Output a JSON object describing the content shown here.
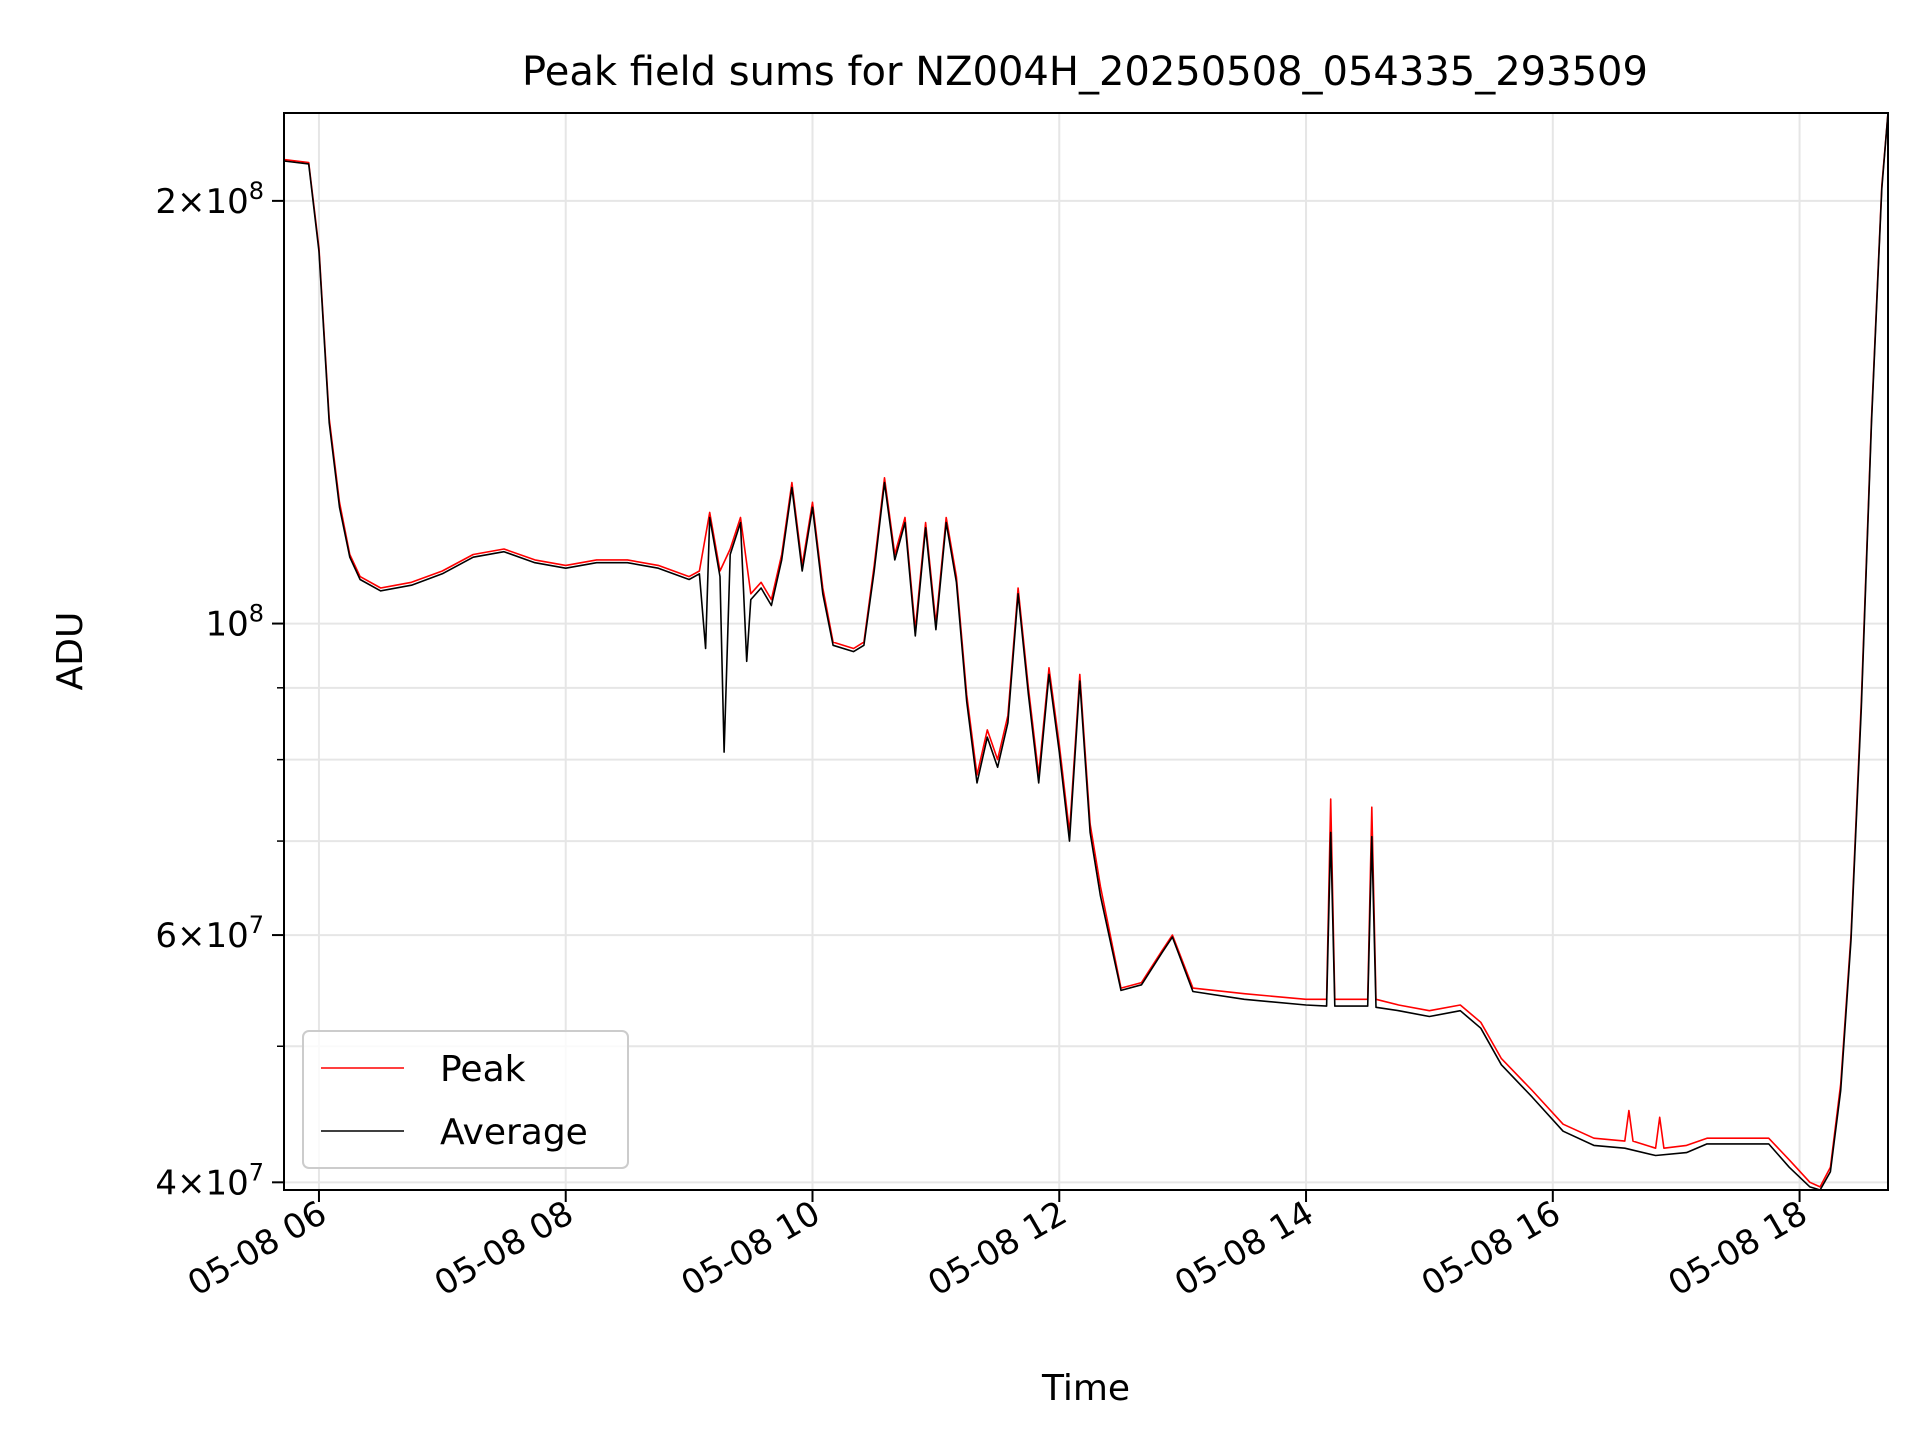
{
  "chart_data": {
    "type": "line",
    "title": "Peak field sums for NZ004H_20250508_054335_293509",
    "xlabel": "Time",
    "ylabel": "ADU",
    "yscale": "log",
    "grid": true,
    "legend_position": "lower-left",
    "xlim": [
      "2025-05-08 05:43",
      "2025-05-08 18:43"
    ],
    "ylim": [
      39500000,
      231000000
    ],
    "x_ticks": [
      {
        "value": "2025-05-08 06:00",
        "label": "05-08 06"
      },
      {
        "value": "2025-05-08 08:00",
        "label": "05-08 08"
      },
      {
        "value": "2025-05-08 10:00",
        "label": "05-08 10"
      },
      {
        "value": "2025-05-08 12:00",
        "label": "05-08 12"
      },
      {
        "value": "2025-05-08 14:00",
        "label": "05-08 14"
      },
      {
        "value": "2025-05-08 16:00",
        "label": "05-08 16"
      },
      {
        "value": "2025-05-08 18:00",
        "label": "05-08 18"
      }
    ],
    "y_ticks_major": [
      {
        "value": 40000000,
        "mantissa": "4",
        "exponent": "7"
      },
      {
        "value": 60000000,
        "mantissa": "6",
        "exponent": "7"
      },
      {
        "value": 100000000,
        "mantissa": "",
        "exponent": "8"
      },
      {
        "value": 200000000,
        "mantissa": "2",
        "exponent": "8"
      }
    ],
    "y_ticks_minor": [
      50000000,
      70000000,
      80000000,
      90000000
    ],
    "series": [
      {
        "name": "Peak",
        "color": "#ff0000",
        "points": [
          [
            "2025-05-08 05:43",
            214000000
          ],
          [
            "2025-05-08 05:55",
            213000000
          ],
          [
            "2025-05-08 06:00",
            185000000
          ],
          [
            "2025-05-08 06:05",
            140000000
          ],
          [
            "2025-05-08 06:10",
            122000000
          ],
          [
            "2025-05-08 06:15",
            112000000
          ],
          [
            "2025-05-08 06:20",
            108000000
          ],
          [
            "2025-05-08 06:30",
            106000000
          ],
          [
            "2025-05-08 06:45",
            107000000
          ],
          [
            "2025-05-08 07:00",
            109000000
          ],
          [
            "2025-05-08 07:15",
            112000000
          ],
          [
            "2025-05-08 07:30",
            113000000
          ],
          [
            "2025-05-08 07:45",
            111000000
          ],
          [
            "2025-05-08 08:00",
            110000000
          ],
          [
            "2025-05-08 08:15",
            111000000
          ],
          [
            "2025-05-08 08:30",
            111000000
          ],
          [
            "2025-05-08 08:45",
            110000000
          ],
          [
            "2025-05-08 09:00",
            108000000
          ],
          [
            "2025-05-08 09:05",
            109000000
          ],
          [
            "2025-05-08 09:10",
            120000000
          ],
          [
            "2025-05-08 09:15",
            109000000
          ],
          [
            "2025-05-08 09:20",
            113000000
          ],
          [
            "2025-05-08 09:25",
            119000000
          ],
          [
            "2025-05-08 09:30",
            105000000
          ],
          [
            "2025-05-08 09:35",
            107000000
          ],
          [
            "2025-05-08 09:40",
            104000000
          ],
          [
            "2025-05-08 09:45",
            112000000
          ],
          [
            "2025-05-08 09:50",
            126000000
          ],
          [
            "2025-05-08 09:55",
            110000000
          ],
          [
            "2025-05-08 10:00",
            122000000
          ],
          [
            "2025-05-08 10:05",
            106000000
          ],
          [
            "2025-05-08 10:10",
            97000000
          ],
          [
            "2025-05-08 10:20",
            96000000
          ],
          [
            "2025-05-08 10:25",
            97000000
          ],
          [
            "2025-05-08 10:30",
            110000000
          ],
          [
            "2025-05-08 10:35",
            127000000
          ],
          [
            "2025-05-08 10:40",
            112000000
          ],
          [
            "2025-05-08 10:45",
            119000000
          ],
          [
            "2025-05-08 10:50",
            99000000
          ],
          [
            "2025-05-08 10:55",
            118000000
          ],
          [
            "2025-05-08 11:00",
            100000000
          ],
          [
            "2025-05-08 11:05",
            119000000
          ],
          [
            "2025-05-08 11:10",
            108000000
          ],
          [
            "2025-05-08 11:15",
            89000000
          ],
          [
            "2025-05-08 11:20",
            78000000
          ],
          [
            "2025-05-08 11:25",
            84000000
          ],
          [
            "2025-05-08 11:30",
            80000000
          ],
          [
            "2025-05-08 11:35",
            86000000
          ],
          [
            "2025-05-08 11:40",
            106000000
          ],
          [
            "2025-05-08 11:45",
            90000000
          ],
          [
            "2025-05-08 11:50",
            78000000
          ],
          [
            "2025-05-08 11:55",
            93000000
          ],
          [
            "2025-05-08 12:00",
            82000000
          ],
          [
            "2025-05-08 12:05",
            71000000
          ],
          [
            "2025-05-08 12:10",
            92000000
          ],
          [
            "2025-05-08 12:15",
            72000000
          ],
          [
            "2025-05-08 12:20",
            65000000
          ],
          [
            "2025-05-08 12:30",
            55000000
          ],
          [
            "2025-05-08 12:40",
            55500000
          ],
          [
            "2025-05-08 12:50",
            58500000
          ],
          [
            "2025-05-08 12:55",
            60000000
          ],
          [
            "2025-05-08 13:05",
            55000000
          ],
          [
            "2025-05-08 13:30",
            54500000
          ],
          [
            "2025-05-08 14:00",
            54000000
          ],
          [
            "2025-05-08 14:10",
            54000000
          ],
          [
            "2025-05-08 14:12",
            75000000
          ],
          [
            "2025-05-08 14:14",
            54000000
          ],
          [
            "2025-05-08 14:30",
            54000000
          ],
          [
            "2025-05-08 14:32",
            74000000
          ],
          [
            "2025-05-08 14:34",
            54000000
          ],
          [
            "2025-05-08 14:45",
            53500000
          ],
          [
            "2025-05-08 15:00",
            53000000
          ],
          [
            "2025-05-08 15:15",
            53500000
          ],
          [
            "2025-05-08 15:25",
            52000000
          ],
          [
            "2025-05-08 15:35",
            49000000
          ],
          [
            "2025-05-08 15:50",
            46500000
          ],
          [
            "2025-05-08 16:05",
            44000000
          ],
          [
            "2025-05-08 16:20",
            43000000
          ],
          [
            "2025-05-08 16:35",
            42800000
          ],
          [
            "2025-05-08 16:37",
            45000000
          ],
          [
            "2025-05-08 16:39",
            42800000
          ],
          [
            "2025-05-08 16:50",
            42300000
          ],
          [
            "2025-05-08 16:52",
            44500000
          ],
          [
            "2025-05-08 16:54",
            42300000
          ],
          [
            "2025-05-08 17:05",
            42500000
          ],
          [
            "2025-05-08 17:15",
            43000000
          ],
          [
            "2025-05-08 17:30",
            43000000
          ],
          [
            "2025-05-08 17:45",
            43000000
          ],
          [
            "2025-05-08 17:55",
            41500000
          ],
          [
            "2025-05-08 18:05",
            40000000
          ],
          [
            "2025-05-08 18:10",
            39700000
          ],
          [
            "2025-05-08 18:15",
            41000000
          ],
          [
            "2025-05-08 18:20",
            47000000
          ],
          [
            "2025-05-08 18:25",
            60000000
          ],
          [
            "2025-05-08 18:30",
            88000000
          ],
          [
            "2025-05-08 18:35",
            140000000
          ],
          [
            "2025-05-08 18:40",
            205000000
          ],
          [
            "2025-05-08 18:43",
            231000000
          ]
        ]
      },
      {
        "name": "Average",
        "color": "#000000",
        "points": [
          [
            "2025-05-08 05:43",
            213500000
          ],
          [
            "2025-05-08 05:55",
            212500000
          ],
          [
            "2025-05-08 06:00",
            184000000
          ],
          [
            "2025-05-08 06:05",
            139000000
          ],
          [
            "2025-05-08 06:10",
            121000000
          ],
          [
            "2025-05-08 06:15",
            111500000
          ],
          [
            "2025-05-08 06:20",
            107500000
          ],
          [
            "2025-05-08 06:30",
            105500000
          ],
          [
            "2025-05-08 06:45",
            106500000
          ],
          [
            "2025-05-08 07:00",
            108500000
          ],
          [
            "2025-05-08 07:15",
            111500000
          ],
          [
            "2025-05-08 07:30",
            112500000
          ],
          [
            "2025-05-08 07:45",
            110500000
          ],
          [
            "2025-05-08 08:00",
            109500000
          ],
          [
            "2025-05-08 08:15",
            110500000
          ],
          [
            "2025-05-08 08:30",
            110500000
          ],
          [
            "2025-05-08 08:45",
            109500000
          ],
          [
            "2025-05-08 09:00",
            107500000
          ],
          [
            "2025-05-08 09:05",
            108500000
          ],
          [
            "2025-05-08 09:08",
            96000000
          ],
          [
            "2025-05-08 09:10",
            119000000
          ],
          [
            "2025-05-08 09:15",
            108000000
          ],
          [
            "2025-05-08 09:17",
            81000000
          ],
          [
            "2025-05-08 09:20",
            112000000
          ],
          [
            "2025-05-08 09:25",
            118000000
          ],
          [
            "2025-05-08 09:28",
            94000000
          ],
          [
            "2025-05-08 09:30",
            104000000
          ],
          [
            "2025-05-08 09:35",
            106000000
          ],
          [
            "2025-05-08 09:40",
            103000000
          ],
          [
            "2025-05-08 09:45",
            111000000
          ],
          [
            "2025-05-08 09:50",
            125000000
          ],
          [
            "2025-05-08 09:55",
            109000000
          ],
          [
            "2025-05-08 10:00",
            121000000
          ],
          [
            "2025-05-08 10:05",
            105000000
          ],
          [
            "2025-05-08 10:10",
            96500000
          ],
          [
            "2025-05-08 10:20",
            95500000
          ],
          [
            "2025-05-08 10:25",
            96500000
          ],
          [
            "2025-05-08 10:30",
            109000000
          ],
          [
            "2025-05-08 10:35",
            126000000
          ],
          [
            "2025-05-08 10:40",
            111000000
          ],
          [
            "2025-05-08 10:45",
            118000000
          ],
          [
            "2025-05-08 10:50",
            98000000
          ],
          [
            "2025-05-08 10:55",
            117000000
          ],
          [
            "2025-05-08 11:00",
            99000000
          ],
          [
            "2025-05-08 11:05",
            118000000
          ],
          [
            "2025-05-08 11:10",
            107000000
          ],
          [
            "2025-05-08 11:15",
            88000000
          ],
          [
            "2025-05-08 11:20",
            77000000
          ],
          [
            "2025-05-08 11:25",
            83000000
          ],
          [
            "2025-05-08 11:30",
            79000000
          ],
          [
            "2025-05-08 11:35",
            85000000
          ],
          [
            "2025-05-08 11:40",
            105000000
          ],
          [
            "2025-05-08 11:45",
            89000000
          ],
          [
            "2025-05-08 11:50",
            77000000
          ],
          [
            "2025-05-08 11:55",
            92000000
          ],
          [
            "2025-05-08 12:00",
            81000000
          ],
          [
            "2025-05-08 12:05",
            70000000
          ],
          [
            "2025-05-08 12:10",
            91000000
          ],
          [
            "2025-05-08 12:15",
            71000000
          ],
          [
            "2025-05-08 12:20",
            64000000
          ],
          [
            "2025-05-08 12:30",
            54800000
          ],
          [
            "2025-05-08 12:40",
            55300000
          ],
          [
            "2025-05-08 12:50",
            58300000
          ],
          [
            "2025-05-08 12:55",
            59800000
          ],
          [
            "2025-05-08 13:05",
            54700000
          ],
          [
            "2025-05-08 13:30",
            54000000
          ],
          [
            "2025-05-08 14:00",
            53500000
          ],
          [
            "2025-05-08 14:10",
            53400000
          ],
          [
            "2025-05-08 14:12",
            71000000
          ],
          [
            "2025-05-08 14:14",
            53400000
          ],
          [
            "2025-05-08 14:30",
            53400000
          ],
          [
            "2025-05-08 14:32",
            70500000
          ],
          [
            "2025-05-08 14:34",
            53300000
          ],
          [
            "2025-05-08 14:45",
            53000000
          ],
          [
            "2025-05-08 15:00",
            52500000
          ],
          [
            "2025-05-08 15:15",
            53000000
          ],
          [
            "2025-05-08 15:25",
            51500000
          ],
          [
            "2025-05-08 15:35",
            48500000
          ],
          [
            "2025-05-08 15:50",
            46000000
          ],
          [
            "2025-05-08 16:05",
            43500000
          ],
          [
            "2025-05-08 16:20",
            42500000
          ],
          [
            "2025-05-08 16:35",
            42300000
          ],
          [
            "2025-05-08 16:50",
            41800000
          ],
          [
            "2025-05-08 17:05",
            42000000
          ],
          [
            "2025-05-08 17:15",
            42600000
          ],
          [
            "2025-05-08 17:30",
            42600000
          ],
          [
            "2025-05-08 17:45",
            42600000
          ],
          [
            "2025-05-08 17:55",
            41000000
          ],
          [
            "2025-05-08 18:05",
            39700000
          ],
          [
            "2025-05-08 18:10",
            39500000
          ],
          [
            "2025-05-08 18:15",
            40700000
          ],
          [
            "2025-05-08 18:20",
            46500000
          ],
          [
            "2025-05-08 18:25",
            59500000
          ],
          [
            "2025-05-08 18:30",
            87000000
          ],
          [
            "2025-05-08 18:35",
            139000000
          ],
          [
            "2025-05-08 18:40",
            204000000
          ],
          [
            "2025-05-08 18:43",
            231000000
          ]
        ]
      }
    ]
  }
}
